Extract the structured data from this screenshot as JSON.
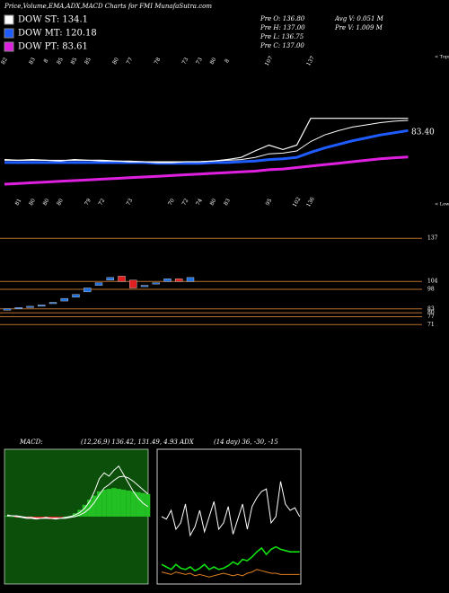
{
  "header": {
    "title": "Price,Volume,EMA,ADX,MACD Charts for FMI MunafaSutra.com",
    "info": [
      "Pre O: 136.80",
      "Pre H: 137.00",
      "Pre L: 136.75",
      "Pre C: 137.00",
      "Avg V: 0.051 M",
      "Pre V: 1.009 M"
    ]
  },
  "chart_data": [
    {
      "type": "line",
      "ylim": [
        15,
        226
      ],
      "price": {
        "color": "#ffffff",
        "values": [
          80,
          79,
          80,
          79,
          78,
          80,
          79,
          79,
          78,
          77,
          77,
          76,
          76,
          77,
          77,
          78,
          80,
          83,
          92,
          100,
          94,
          100,
          137,
          137,
          137,
          137,
          137,
          137,
          137,
          137
        ]
      },
      "series": [
        {
          "name": "DOW ST: 134.1",
          "color": "#ffffff",
          "values": [
            79,
            79,
            79,
            79,
            79,
            79,
            79,
            78,
            78,
            78,
            77,
            77,
            77,
            77,
            77,
            78,
            79,
            80,
            83,
            88,
            89,
            92,
            105,
            114,
            120,
            125,
            128,
            131,
            133,
            134.1
          ]
        },
        {
          "name": "DOW MT: 120.18",
          "color": "#1e5cff",
          "values": [
            76,
            76,
            76,
            76,
            76,
            76,
            76,
            76,
            76,
            76,
            76,
            75,
            75,
            75,
            75,
            76,
            76,
            77,
            78,
            80,
            81,
            83,
            90,
            96,
            101,
            106,
            110,
            114,
            117,
            120.18
          ]
        },
        {
          "name": "DOW PT: 83.61",
          "color": "#e020e0",
          "values": [
            46,
            47,
            48,
            49,
            50,
            51,
            52,
            53,
            54,
            55,
            56,
            57,
            58,
            59,
            60,
            61,
            62,
            63,
            64,
            66,
            67,
            69,
            71,
            73,
            75,
            77,
            79,
            81,
            82.5,
            83.61
          ]
        }
      ],
      "tops": [
        82,
        null,
        83,
        8,
        85,
        85,
        85,
        null,
        80,
        77,
        null,
        78,
        null,
        73,
        73,
        80,
        8,
        null,
        null,
        107,
        null,
        null,
        137,
        null,
        null,
        null,
        null,
        null,
        null,
        null
      ],
      "tops_label": "< Tops",
      "lows": [
        null,
        81,
        80,
        80,
        80,
        null,
        79,
        72,
        null,
        73,
        null,
        null,
        70,
        72,
        74,
        80,
        83,
        null,
        null,
        95,
        null,
        102,
        136,
        null,
        null,
        null,
        null,
        null,
        null,
        null
      ],
      "lows_label": "< Lows",
      "annotation": "83.40"
    },
    {
      "type": "candlestick",
      "ylim": [
        65,
        144
      ],
      "yticks": [
        137,
        104,
        98,
        83,
        80,
        77,
        71
      ],
      "level_color": "#b8702e",
      "up_color": "#1e6fe0",
      "down_color": "#e02020",
      "open": [
        82,
        83,
        84,
        85,
        87,
        89,
        92,
        96,
        101,
        105,
        108,
        105,
        100,
        102,
        104,
        106,
        104
      ],
      "close": [
        83,
        84,
        85,
        86,
        88,
        91,
        94,
        99,
        103,
        107,
        104,
        99,
        101,
        103,
        106,
        104,
        107
      ]
    },
    {
      "type": "macd",
      "label": "MACD:",
      "text": "(12,26,9) 136.42, 131.49, 4.93 ADX",
      "ylim": [
        -80,
        80
      ],
      "background": "#0b4f0b",
      "up_color": "#22c022",
      "down_color": "#e02020",
      "line_color": "#ffffff",
      "macd": [
        2,
        1,
        0,
        -1,
        -2,
        -2,
        -3,
        -2,
        -1,
        -2,
        -3,
        -2,
        -1,
        0,
        2,
        5,
        10,
        18,
        30,
        45,
        52,
        48,
        55,
        60,
        50,
        40,
        30,
        22,
        16,
        12
      ],
      "signal": [
        1,
        1,
        1,
        0,
        -1,
        -1,
        -2,
        -2,
        -2,
        -2,
        -2,
        -2,
        -2,
        -1,
        0,
        2,
        5,
        10,
        17,
        26,
        34,
        38,
        43,
        47,
        48,
        46,
        42,
        37,
        32,
        27
      ],
      "histogram": [
        1,
        0,
        -1,
        -1,
        -2,
        -2,
        -3,
        -2,
        -2,
        -3,
        -2,
        -1,
        0,
        1,
        4,
        8,
        14,
        20,
        25,
        30,
        32,
        33,
        34,
        33,
        32,
        31,
        30,
        29,
        28,
        27
      ]
    },
    {
      "type": "adx",
      "text": "(14 day) 36, -30, -15",
      "ylim": [
        0,
        100
      ],
      "series": [
        {
          "color": "#ffffff",
          "values": [
            50,
            48,
            55,
            40,
            45,
            60,
            35,
            42,
            55,
            38,
            50,
            62,
            40,
            45,
            58,
            36,
            48,
            60,
            40,
            58,
            65,
            70,
            72,
            45,
            50,
            78,
            60,
            55,
            57,
            50
          ]
        },
        {
          "color": "#10e010",
          "values": [
            12,
            10,
            8,
            12,
            9,
            8,
            10,
            7,
            9,
            12,
            8,
            10,
            8,
            9,
            11,
            14,
            12,
            16,
            15,
            18,
            22,
            25,
            20,
            24,
            26,
            24,
            23,
            22,
            22,
            22
          ]
        },
        {
          "color": "#e08020",
          "values": [
            6,
            5,
            4,
            6,
            5,
            4,
            5,
            3,
            4,
            3,
            2,
            3,
            4,
            5,
            4,
            3,
            4,
            3,
            5,
            6,
            8,
            7,
            6,
            5,
            5,
            4,
            4,
            4,
            4,
            4
          ]
        }
      ]
    }
  ]
}
